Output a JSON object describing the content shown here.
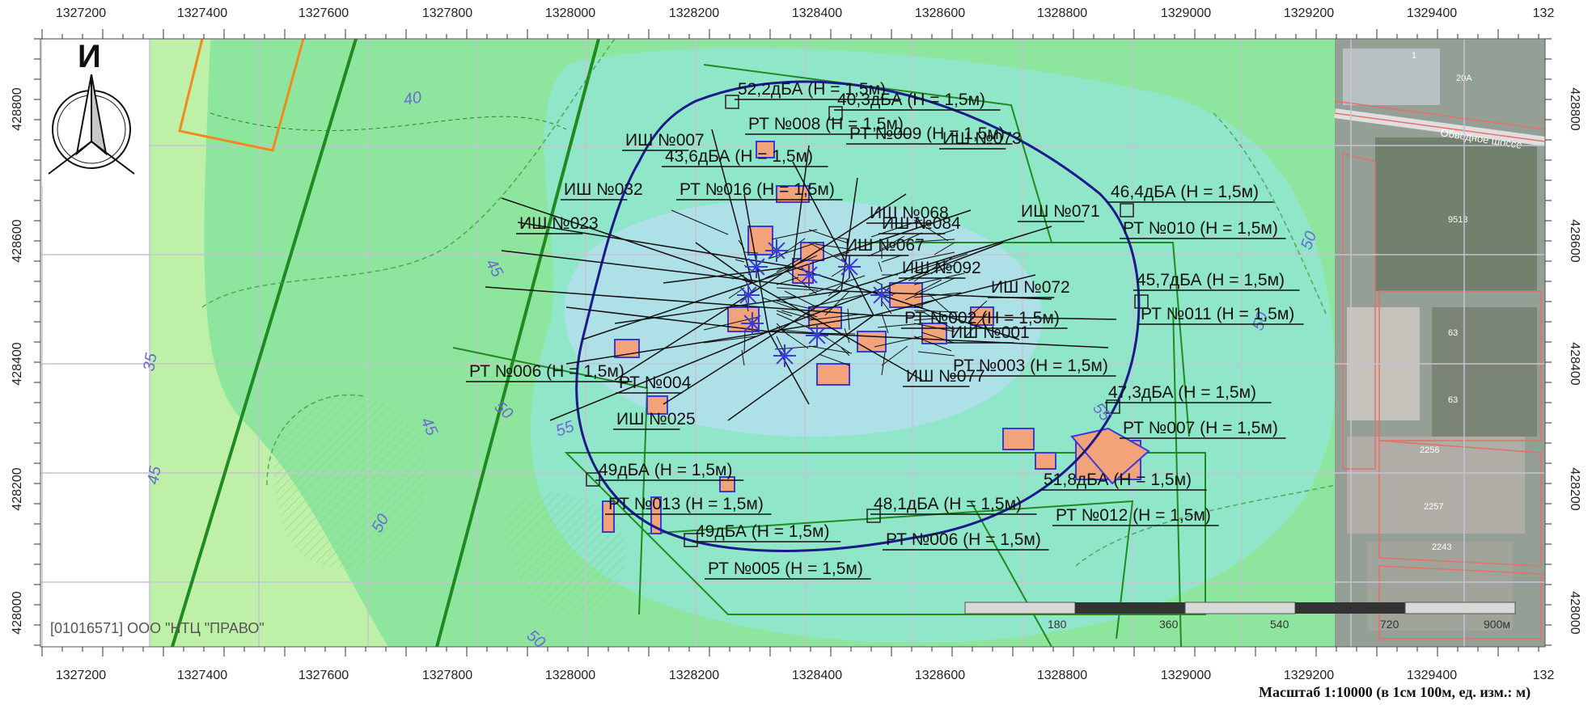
{
  "north_arrow": {
    "letter": "И"
  },
  "axis": {
    "x_labels": [
      "1327200",
      "1327400",
      "1327600",
      "1327800",
      "1328000",
      "1328200",
      "1328400",
      "1328600",
      "1328800",
      "1329000",
      "1329200",
      "1329400",
      "132"
    ],
    "y_labels": [
      "428800",
      "428600",
      "428400",
      "428200",
      "428000"
    ]
  },
  "contours": [
    "35",
    "40",
    "45",
    "45",
    "45",
    "50",
    "50",
    "50",
    "50",
    "55",
    "55",
    "50"
  ],
  "labels": [
    "52,2дБА (Н = 1,5м)",
    "40,3дБА (Н = 1,5м)",
    "РТ №008 (Н = 1,5м)",
    "РТ №009 (Н = 1,5м)",
    "ИШ №007",
    "ИШ №073",
    "43,6дБА (Н = 1,5м)",
    "ИШ №032",
    "РТ №016 (Н = 1,5м)",
    "46,4дБА (Н = 1,5м)",
    "ИШ №071",
    "РТ №010 (Н = 1,5м)",
    "ИШ №023",
    "ИШ №068",
    "ИШ №084",
    "ИШ №067",
    "ИШ №092",
    "ИШ №072",
    "45,7дБА (Н = 1,5м)",
    "РТ №011 (Н = 1,5м)",
    "РТ №002 (Н = 1,5м)",
    "ИШ №001",
    "РТ №003 (Н = 1,5м)",
    "РТ №006 (Н = 1,5м)",
    "РТ №004",
    "ИШ №077",
    "47,3дБА (Н = 1,5м)",
    "РТ №007 (Н = 1,5м)",
    "ИШ №025",
    "49дБА (Н = 1,5м)",
    "51,8дБА (Н = 1,5м)",
    "РТ №013 (Н = 1,5м)",
    "48,1дБА (Н = 1,5м)",
    "РТ №012 (Н = 1,5м)",
    "49дБА (Н = 1,5м)",
    "РТ №006 (Н = 1,5м)",
    "РТ №005 (Н = 1,5м)"
  ],
  "aerial": {
    "road_name": "Обводное шоссе",
    "parcels": [
      "1",
      "20А",
      "9513",
      "63",
      "63",
      "2256",
      "2257",
      "2243"
    ]
  },
  "org": "[01016571] ООО \"НТЦ \"ПРАВО\"",
  "scale": {
    "ticks": [
      "180",
      "360",
      "540",
      "720",
      "900м"
    ],
    "caption": "Масштаб 1:10000 (в 1см 100м, ед. изм.: м)"
  },
  "colors": {
    "zone_light": "#bff0a8",
    "zone_green": "#8ee69e",
    "zone_teal": "#8fe6c9",
    "zone_blue": "#aee0e8",
    "boundary": "#1a1a8a",
    "source_fill": "#f2a37a",
    "source_edge": "#3a3ad8",
    "parcel_line": "#1f8a1f",
    "orange_parcel": "#f08a1c"
  }
}
